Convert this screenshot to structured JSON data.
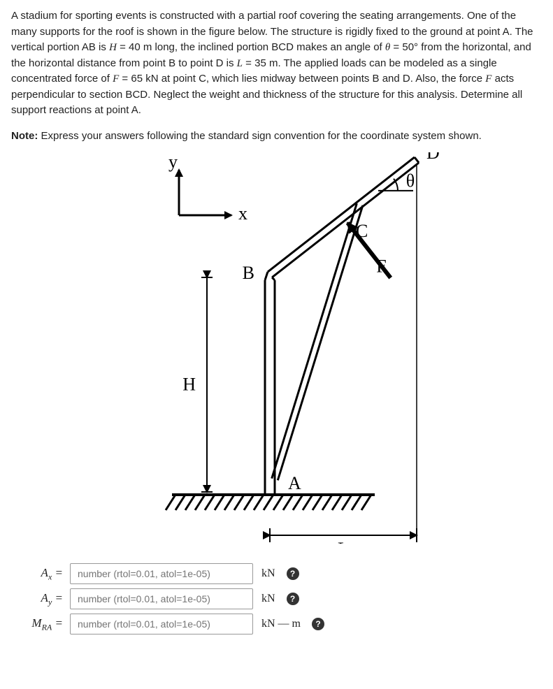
{
  "problem": {
    "paragraph_html": "A stadium for sporting events is constructed with a partial roof covering the seating arrangements. One of the many supports for the roof is shown in the figure below. The structure is rigidly fixed to the ground at point A. The vertical portion AB is <span class='math-var'>H</span> = 40 m long, the inclined portion BCD makes an angle of <span class='math-var'>θ</span> = 50° from the horizontal, and the horizontal distance from point B to point D is <span class='math-var'>L</span> = 35 m. The applied loads can be modeled as a single concentrated force of <span class='math-var'>F</span> = 65 kN at point C, which lies midway between points B and D. Also, the force <span class='math-var'>F</span> acts perpendicular to section BCD. Neglect the weight and thickness of the structure for this analysis. Determine all support reactions at point A."
  },
  "note": {
    "label": "Note:",
    "text": "Express your answers following the standard sign convention for the coordinate system shown."
  },
  "figure": {
    "axis_y": "y",
    "axis_x": "x",
    "labels": {
      "F": "F",
      "B": "B",
      "C": "C",
      "D": "D",
      "theta": "θ",
      "H": "H",
      "A": "A",
      "L": "L"
    },
    "theta_deg": 50,
    "stroke": "#000000",
    "stroke_width": 3,
    "fill": "#ffffff",
    "font_family": "Times New Roman, serif",
    "label_font_size": 26
  },
  "answers": [
    {
      "symbol_html": "A<sub class='sub'>x</sub> =",
      "placeholder": "number (rtol=0.01, atol=1e-05)",
      "unit": "kN"
    },
    {
      "symbol_html": "A<sub class='sub'>y</sub> =",
      "placeholder": "number (rtol=0.01, atol=1e-05)",
      "unit": "kN"
    },
    {
      "symbol_html": "M<sub class='sub'>RA</sub> =",
      "placeholder": "number (rtol=0.01, atol=1e-05)",
      "unit": "kN — m"
    }
  ],
  "help_glyph": "?"
}
